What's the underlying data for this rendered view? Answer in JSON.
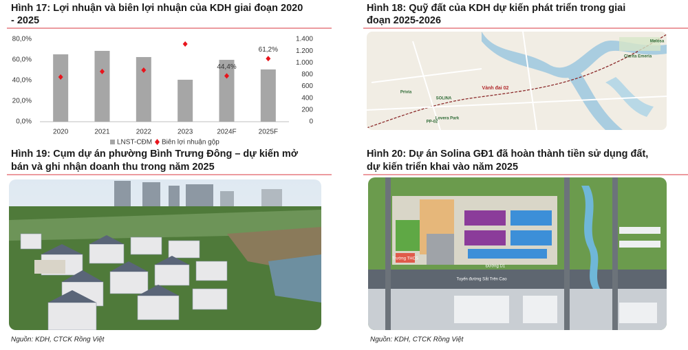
{
  "chart_data": {
    "type": "bar",
    "title": "Hình 17: Lợi nhuận và biên lợi nhuận của KDH giai đoạn 2020 - 2025",
    "categories": [
      "2020",
      "2021",
      "2022",
      "2023",
      "2024F",
      "2025F"
    ],
    "series": [
      {
        "name": "LNST-CĐM",
        "color": "#a6a6a6",
        "type": "bar",
        "axis": "y2",
        "values": [
          1143,
          1202,
          1097,
          712,
          1050,
          887
        ]
      },
      {
        "name": "Biên lợi nhuận gộp",
        "color": "#e8141c",
        "type": "scatter",
        "values": [
          43.3,
          48.7,
          50,
          75.3,
          44.4,
          61.2
        ],
        "value_labels": [
          null,
          null,
          null,
          null,
          "44,4%",
          "61,2%"
        ]
      }
    ],
    "ylim": [
      0,
      80
    ],
    "yticks": [
      {
        "value": 0,
        "label": "0,0%"
      },
      {
        "value": 20,
        "label": "20,0%"
      },
      {
        "value": 40,
        "label": "40,0%"
      },
      {
        "value": 60,
        "label": "60,0%"
      },
      {
        "value": 80,
        "label": "80,0%"
      }
    ],
    "y2lim": [
      0,
      1400
    ],
    "y2ticks": [
      0,
      200,
      400,
      600,
      800,
      {
        "value": 1000,
        "label": "1.000"
      },
      {
        "value": 1200,
        "label": "1.200"
      },
      {
        "value": 1400,
        "label": "1.400"
      }
    ],
    "legend": "bottom"
  },
  "figures": {
    "fig18": {
      "title": "Hình 18: Quỹ đất của KDH dự kiến phát triển trong giai đoạn 2025-2026",
      "map_labels": [
        "Vành đai 02",
        "Privia",
        "SOLINA",
        "Lovera Park",
        "PP-02",
        "Melosa",
        "Clarita Emeria"
      ]
    },
    "fig19": {
      "title": "Hình 19: Cụm dự án phường Bình Trưng Đông – dự kiến mở bán và ghi nhận doanh thu trong năm 2025"
    },
    "fig20": {
      "title": "Hình 20: Dự án Solina GĐ1 đã hoàn thành tiền sử dụng đất, dự kiến triển khai vào năm 2025",
      "plan_labels": [
        "Đường D1",
        "Tuyến đường Sắt Trên Cao",
        "Trường THCS"
      ]
    },
    "source_left": "Nguồn: KDH, CTCK Rồng Việt",
    "source_right": "Nguồn: KDH, CTCK Rồng Việt"
  }
}
